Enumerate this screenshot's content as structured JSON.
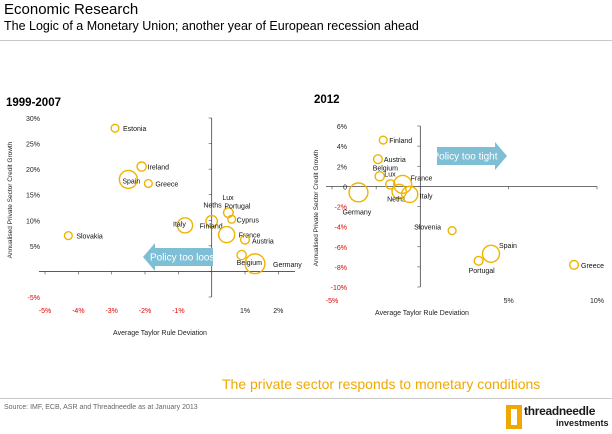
{
  "header": {
    "title": "Economic Research",
    "subtitle": "The Logic of a Monetary Union; another year of European recession ahead"
  },
  "tagline": "The private sector responds to monetary conditions",
  "source": "Source: IMF, ECB, ASR and Threadneedle  as at January 2013",
  "logo": {
    "name": "threadneedle",
    "sub": "investments",
    "accent_color": "#f0a800"
  },
  "colors": {
    "bubble": "#f0b400",
    "arrow": "#7fbfd6",
    "negative_tick": "#e00000",
    "arrow_text": "#ffffff"
  },
  "chart_data": [
    {
      "type": "scatter",
      "title": "1999-2007",
      "xlabel": "Average Taylor Rule Deviation",
      "ylabel": "Annualised Private Sector Credit Growth",
      "xlim": [
        -5,
        2.5
      ],
      "ylim": [
        -5,
        30
      ],
      "xticks": [
        "-5%",
        "-4%",
        "-3%",
        "-2%",
        "-1%",
        "",
        "1%",
        "2%"
      ],
      "xtick_values": [
        -5,
        -4,
        -3,
        -2,
        -1,
        0,
        1,
        2
      ],
      "yticks": [
        "-5%",
        "",
        "5%",
        "10%",
        "15%",
        "20%",
        "25%",
        "30%"
      ],
      "ytick_values": [
        -5,
        0,
        5,
        10,
        15,
        20,
        25,
        30
      ],
      "arrow": {
        "label": "Policy too loose",
        "direction": "left"
      },
      "points": [
        {
          "label": "Estonia",
          "x": -2.9,
          "y": 28,
          "size": 1.0
        },
        {
          "label": "Ireland",
          "x": -2.1,
          "y": 20.5,
          "size": 1.3
        },
        {
          "label": "Spain",
          "x": -2.5,
          "y": 18,
          "size": 3.2
        },
        {
          "label": "Greece",
          "x": -1.9,
          "y": 17.2,
          "size": 1.0
        },
        {
          "label": "Slovakia",
          "x": -4.3,
          "y": 7,
          "size": 1.0
        },
        {
          "label": "Lux",
          "x": 0.2,
          "y": 14,
          "size": 0
        },
        {
          "label": "Neths",
          "x": -0.1,
          "y": 12.5,
          "size": 0
        },
        {
          "label": "Portugal",
          "x": 0.5,
          "y": 11.5,
          "size": 1.4
        },
        {
          "label": "Cyprus",
          "x": 0.6,
          "y": 10.2,
          "size": 1.0
        },
        {
          "label": "Italy",
          "x": -0.8,
          "y": 9,
          "size": 2.6
        },
        {
          "label": "Finland",
          "x": 0.0,
          "y": 9.8,
          "size": 1.8
        },
        {
          "label": "France",
          "x": 0.45,
          "y": 7.2,
          "size": 2.8
        },
        {
          "label": "Austria",
          "x": 1.0,
          "y": 6.2,
          "size": 1.2
        },
        {
          "label": "Belgium",
          "x": 0.9,
          "y": 3.2,
          "size": 1.3
        },
        {
          "label": "Germany",
          "x": 1.3,
          "y": 1.5,
          "size": 3.6
        }
      ]
    },
    {
      "type": "scatter",
      "title": "2012",
      "xlabel": "Average Taylor Rule Deviation",
      "ylabel": "Annualised Private Sector Credit Growth",
      "xlim": [
        -5,
        10
      ],
      "ylim": [
        -10,
        6
      ],
      "xticks": [
        "-5%",
        "",
        "",
        "5%",
        "10%"
      ],
      "xtick_values": [
        -5,
        -2.5,
        0,
        5,
        10
      ],
      "yticks": [
        "-10%",
        "-8%",
        "-6%",
        "-4%",
        "-2%",
        "0",
        "2%",
        "4%",
        "6%"
      ],
      "ytick_values": [
        -10,
        -8,
        -6,
        -4,
        -2,
        0,
        2,
        4,
        6
      ],
      "arrow": {
        "label": "Policy too tight",
        "direction": "right"
      },
      "points": [
        {
          "label": "Finland",
          "x": -2.1,
          "y": 4.6,
          "size": 1.0
        },
        {
          "label": "Austria",
          "x": -2.4,
          "y": 2.7,
          "size": 1.2
        },
        {
          "label": "Belgium",
          "x": -2.3,
          "y": 1.0,
          "size": 1.3
        },
        {
          "label": "Lux",
          "x": -1.7,
          "y": 0.2,
          "size": 1.3
        },
        {
          "label": "France",
          "x": -1.0,
          "y": 0.2,
          "size": 3.2
        },
        {
          "label": "Neths",
          "x": -1.2,
          "y": -0.5,
          "size": 2.4
        },
        {
          "label": "Italy",
          "x": -0.6,
          "y": -0.8,
          "size": 2.8
        },
        {
          "label": "Germany",
          "x": -3.5,
          "y": -0.6,
          "size": 3.4
        },
        {
          "label": "Slovenia",
          "x": 1.8,
          "y": -4.4,
          "size": 1.0
        },
        {
          "label": "Spain",
          "x": 4.0,
          "y": -6.7,
          "size": 3.0
        },
        {
          "label": "Portugal",
          "x": 3.3,
          "y": -7.4,
          "size": 1.2
        },
        {
          "label": "Greece",
          "x": 8.7,
          "y": -7.8,
          "size": 1.2
        }
      ]
    }
  ]
}
